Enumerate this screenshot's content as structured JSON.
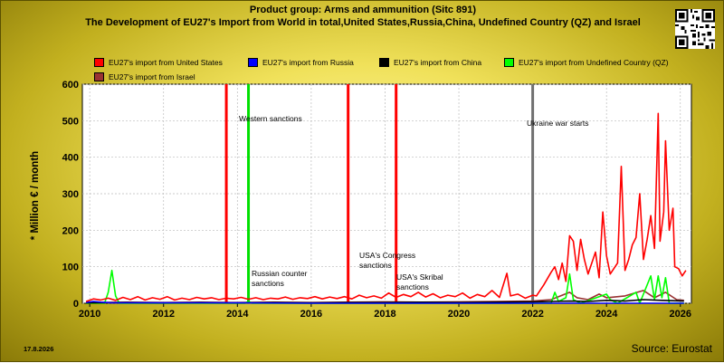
{
  "chart_data": {
    "type": "line",
    "title": "Product group: Arms and ammunition (Sitc 891)",
    "subtitle": "The Development of EU27's Import from World in total,United States,Russia,China, Undefined Country (QZ) and Israel",
    "xlabel": "",
    "ylabel": "* Million € / month",
    "ylim": [
      0,
      600
    ],
    "xlim": [
      2009.8,
      2026.3
    ],
    "grid": true,
    "legend_placement": "top",
    "y_ticks": [
      0,
      100,
      200,
      300,
      400,
      500,
      600
    ],
    "x_ticks": [
      2010,
      2012,
      2014,
      2016,
      2018,
      2020,
      2022,
      2024,
      2026
    ],
    "events": [
      {
        "label": "Western sanctions",
        "x": 2014.3,
        "color": "#00e000"
      },
      {
        "label": "Russian counter sanctions",
        "x": 2014.3,
        "color": "#00e000"
      },
      {
        "label": "USA's Congress sanctions",
        "x": 2017.0,
        "color": "#ff0000"
      },
      {
        "label": "USA's Skribal sanctions",
        "x": 2018.3,
        "color": "#ff0000"
      },
      {
        "label": "Ukraine war starts",
        "x": 2022.0,
        "color": "#707070"
      }
    ],
    "event_lines": [
      {
        "x": 2013.7,
        "color": "#ff0000"
      },
      {
        "x": 2014.3,
        "color": "#00e000"
      },
      {
        "x": 2017.0,
        "color": "#ff0000"
      },
      {
        "x": 2018.3,
        "color": "#ff0000"
      },
      {
        "x": 2022.0,
        "color": "#707070"
      }
    ],
    "series": [
      {
        "name": "EU27's import from United States",
        "color": "#ff0000",
        "points": [
          [
            2009.9,
            5
          ],
          [
            2010.1,
            12
          ],
          [
            2010.3,
            9
          ],
          [
            2010.5,
            14
          ],
          [
            2010.7,
            8
          ],
          [
            2010.9,
            16
          ],
          [
            2011.1,
            10
          ],
          [
            2011.3,
            18
          ],
          [
            2011.5,
            9
          ],
          [
            2011.7,
            15
          ],
          [
            2011.9,
            11
          ],
          [
            2012.1,
            18
          ],
          [
            2012.3,
            9
          ],
          [
            2012.5,
            14
          ],
          [
            2012.7,
            10
          ],
          [
            2012.9,
            16
          ],
          [
            2013.1,
            12
          ],
          [
            2013.3,
            15
          ],
          [
            2013.5,
            10
          ],
          [
            2013.7,
            14
          ],
          [
            2013.9,
            12
          ],
          [
            2014.1,
            16
          ],
          [
            2014.3,
            11
          ],
          [
            2014.5,
            15
          ],
          [
            2014.7,
            10
          ],
          [
            2014.9,
            14
          ],
          [
            2015.1,
            12
          ],
          [
            2015.3,
            17
          ],
          [
            2015.5,
            11
          ],
          [
            2015.7,
            15
          ],
          [
            2015.9,
            13
          ],
          [
            2016.1,
            18
          ],
          [
            2016.3,
            12
          ],
          [
            2016.5,
            17
          ],
          [
            2016.7,
            13
          ],
          [
            2016.9,
            18
          ],
          [
            2017.1,
            12
          ],
          [
            2017.3,
            22
          ],
          [
            2017.5,
            15
          ],
          [
            2017.7,
            20
          ],
          [
            2017.9,
            14
          ],
          [
            2018.1,
            28
          ],
          [
            2018.3,
            16
          ],
          [
            2018.5,
            24
          ],
          [
            2018.7,
            18
          ],
          [
            2018.9,
            30
          ],
          [
            2019.1,
            17
          ],
          [
            2019.3,
            26
          ],
          [
            2019.5,
            15
          ],
          [
            2019.7,
            22
          ],
          [
            2019.9,
            18
          ],
          [
            2020.1,
            28
          ],
          [
            2020.3,
            14
          ],
          [
            2020.5,
            24
          ],
          [
            2020.7,
            18
          ],
          [
            2020.9,
            35
          ],
          [
            2021.1,
            16
          ],
          [
            2021.3,
            82
          ],
          [
            2021.4,
            20
          ],
          [
            2021.6,
            25
          ],
          [
            2021.8,
            14
          ],
          [
            2022.0,
            22
          ],
          [
            2022.1,
            20
          ],
          [
            2022.3,
            50
          ],
          [
            2022.5,
            85
          ],
          [
            2022.6,
            100
          ],
          [
            2022.7,
            65
          ],
          [
            2022.8,
            110
          ],
          [
            2022.9,
            60
          ],
          [
            2023.0,
            185
          ],
          [
            2023.1,
            170
          ],
          [
            2023.2,
            90
          ],
          [
            2023.3,
            175
          ],
          [
            2023.4,
            120
          ],
          [
            2023.5,
            80
          ],
          [
            2023.6,
            110
          ],
          [
            2023.7,
            140
          ],
          [
            2023.8,
            70
          ],
          [
            2023.9,
            250
          ],
          [
            2024.0,
            130
          ],
          [
            2024.1,
            80
          ],
          [
            2024.2,
            95
          ],
          [
            2024.3,
            110
          ],
          [
            2024.4,
            375
          ],
          [
            2024.5,
            90
          ],
          [
            2024.6,
            120
          ],
          [
            2024.7,
            160
          ],
          [
            2024.8,
            180
          ],
          [
            2024.9,
            300
          ],
          [
            2025.0,
            120
          ],
          [
            2025.1,
            175
          ],
          [
            2025.2,
            240
          ],
          [
            2025.3,
            150
          ],
          [
            2025.4,
            520
          ],
          [
            2025.45,
            170
          ],
          [
            2025.55,
            250
          ],
          [
            2025.6,
            445
          ],
          [
            2025.7,
            200
          ],
          [
            2025.8,
            260
          ],
          [
            2025.85,
            100
          ],
          [
            2025.95,
            95
          ],
          [
            2026.05,
            75
          ],
          [
            2026.15,
            90
          ]
        ]
      },
      {
        "name": "EU27's import from Russia",
        "color": "#0000ff",
        "points": [
          [
            2009.9,
            2
          ],
          [
            2010.1,
            5
          ],
          [
            2010.3,
            3
          ],
          [
            2010.6,
            1
          ],
          [
            2011.0,
            1
          ],
          [
            2012.0,
            1
          ],
          [
            2013.0,
            1
          ],
          [
            2014.0,
            1
          ],
          [
            2016.0,
            0
          ],
          [
            2020.0,
            0
          ],
          [
            2026.1,
            0
          ]
        ]
      },
      {
        "name": "EU27's import from China",
        "color": "#000000",
        "points": [
          [
            2009.9,
            1
          ],
          [
            2011.0,
            2
          ],
          [
            2012.0,
            1
          ],
          [
            2013.0,
            2
          ],
          [
            2014.0,
            1
          ],
          [
            2015.0,
            2
          ],
          [
            2016.0,
            1
          ],
          [
            2017.0,
            2
          ],
          [
            2018.0,
            2
          ],
          [
            2019.0,
            3
          ],
          [
            2020.0,
            2
          ],
          [
            2021.0,
            3
          ],
          [
            2022.0,
            4
          ],
          [
            2022.5,
            5
          ],
          [
            2023.0,
            6
          ],
          [
            2023.5,
            5
          ],
          [
            2024.0,
            8
          ],
          [
            2024.5,
            6
          ],
          [
            2025.0,
            10
          ],
          [
            2025.5,
            8
          ],
          [
            2026.1,
            6
          ]
        ]
      },
      {
        "name": "EU27's import from Undefined Country (QZ)",
        "color": "#00ff00",
        "points": [
          [
            2009.9,
            0
          ],
          [
            2010.4,
            0
          ],
          [
            2010.5,
            30
          ],
          [
            2010.6,
            90
          ],
          [
            2010.7,
            20
          ],
          [
            2010.8,
            0
          ],
          [
            2014.2,
            0
          ],
          [
            2014.3,
            5
          ],
          [
            2014.4,
            0
          ],
          [
            2022.5,
            0
          ],
          [
            2022.6,
            30
          ],
          [
            2022.7,
            5
          ],
          [
            2022.9,
            15
          ],
          [
            2023.0,
            80
          ],
          [
            2023.1,
            10
          ],
          [
            2023.3,
            0
          ],
          [
            2024.0,
            25
          ],
          [
            2024.1,
            10
          ],
          [
            2024.3,
            0
          ],
          [
            2024.8,
            30
          ],
          [
            2024.9,
            0
          ],
          [
            2025.2,
            75
          ],
          [
            2025.3,
            10
          ],
          [
            2025.4,
            75
          ],
          [
            2025.5,
            15
          ],
          [
            2025.6,
            70
          ],
          [
            2025.7,
            0
          ],
          [
            2026.1,
            0
          ]
        ]
      },
      {
        "name": "EU27's import from Israel",
        "color": "#993333",
        "points": [
          [
            2009.9,
            2
          ],
          [
            2011.0,
            3
          ],
          [
            2012.0,
            2
          ],
          [
            2013.0,
            3
          ],
          [
            2014.0,
            2
          ],
          [
            2015.0,
            3
          ],
          [
            2016.0,
            2
          ],
          [
            2017.0,
            3
          ],
          [
            2018.0,
            4
          ],
          [
            2019.0,
            3
          ],
          [
            2020.0,
            4
          ],
          [
            2021.0,
            5
          ],
          [
            2022.0,
            6
          ],
          [
            2022.5,
            10
          ],
          [
            2023.0,
            30
          ],
          [
            2023.2,
            15
          ],
          [
            2023.5,
            10
          ],
          [
            2023.8,
            25
          ],
          [
            2024.0,
            15
          ],
          [
            2024.5,
            20
          ],
          [
            2025.0,
            35
          ],
          [
            2025.3,
            15
          ],
          [
            2025.6,
            30
          ],
          [
            2025.9,
            10
          ],
          [
            2026.1,
            8
          ]
        ]
      }
    ]
  },
  "legend": [
    {
      "label": "EU27's import from United States",
      "color": "#ff0000"
    },
    {
      "label": "EU27's import from Russia",
      "color": "#0000ff"
    },
    {
      "label": "EU27's import from China",
      "color": "#000000"
    },
    {
      "label": "EU27's import from Undefined Country (QZ)",
      "color": "#00ff00"
    },
    {
      "label": "EU27's import from Israel",
      "color": "#993333"
    }
  ],
  "footer": {
    "date": "17.8.2026",
    "source": "Source: Eurostat"
  },
  "icons": {
    "qr": "qr-code-icon"
  }
}
